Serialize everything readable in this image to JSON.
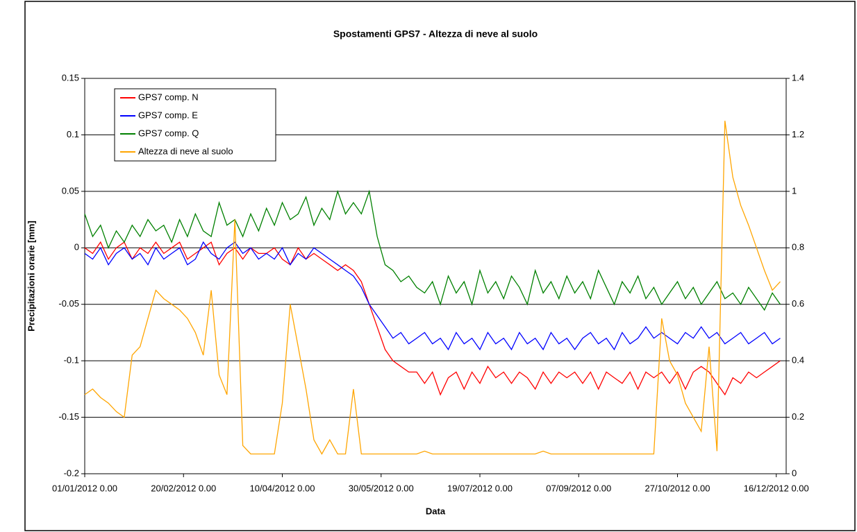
{
  "chart_data": {
    "type": "line",
    "title": "Spostamenti GPS7 - Altezza di neve al suolo",
    "xlabel": "Data",
    "ylabel": "Precipitazioni orarie [mm]",
    "x": [
      0,
      4,
      8,
      12,
      16,
      20,
      24,
      28,
      32,
      36,
      40,
      44,
      48,
      52,
      56,
      60,
      64,
      68,
      72,
      76,
      80,
      84,
      88,
      92,
      96,
      100,
      104,
      108,
      112,
      116,
      120,
      124,
      128,
      132,
      136,
      140,
      144,
      148,
      152,
      156,
      160,
      164,
      168,
      172,
      176,
      180,
      184,
      188,
      192,
      196,
      200,
      204,
      208,
      212,
      216,
      220,
      224,
      228,
      232,
      236,
      240,
      244,
      248,
      252,
      256,
      260,
      264,
      268,
      272,
      276,
      280,
      284,
      288,
      292,
      296,
      300,
      304,
      308,
      312,
      316,
      320,
      324,
      328,
      332,
      336,
      340,
      344,
      348,
      352
    ],
    "xlim": [
      0,
      355
    ],
    "xticks": [
      {
        "value": 0,
        "label": "01/01/2012 0.00"
      },
      {
        "value": 50,
        "label": "20/02/2012 0.00"
      },
      {
        "value": 100,
        "label": "10/04/2012 0.00"
      },
      {
        "value": 150,
        "label": "30/05/2012 0.00"
      },
      {
        "value": 200,
        "label": "19/07/2012 0.00"
      },
      {
        "value": 250,
        "label": "07/09/2012 0.00"
      },
      {
        "value": 300,
        "label": "27/10/2012 0.00"
      },
      {
        "value": 350,
        "label": "16/12/2012 0.00"
      }
    ],
    "ylim": [
      -0.2,
      0.15
    ],
    "yticks": [
      -0.2,
      -0.15,
      -0.1,
      -0.05,
      0,
      0.05,
      0.1,
      0.15
    ],
    "y2lim": [
      0,
      1.4
    ],
    "y2ticks": [
      0,
      0.2,
      0.4,
      0.6,
      0.8,
      1,
      1.2,
      1.4
    ],
    "grid": true,
    "legend": "upper left",
    "series": [
      {
        "name": "GPS7 comp. N",
        "color": "#ff0000",
        "values": [
          0,
          -0.005,
          0.005,
          -0.01,
          0,
          0.005,
          -0.01,
          0,
          -0.005,
          0.005,
          -0.005,
          0,
          0.005,
          -0.01,
          -0.005,
          0,
          0.005,
          -0.015,
          -0.005,
          0,
          -0.01,
          0,
          -0.005,
          -0.005,
          0,
          -0.01,
          -0.015,
          0,
          -0.01,
          -0.005,
          -0.01,
          -0.015,
          -0.02,
          -0.015,
          -0.02,
          -0.03,
          -0.05,
          -0.07,
          -0.09,
          -0.1,
          -0.105,
          -0.11,
          -0.11,
          -0.12,
          -0.11,
          -0.13,
          -0.115,
          -0.11,
          -0.125,
          -0.11,
          -0.12,
          -0.105,
          -0.115,
          -0.11,
          -0.12,
          -0.11,
          -0.115,
          -0.125,
          -0.11,
          -0.12,
          -0.11,
          -0.115,
          -0.11,
          -0.12,
          -0.11,
          -0.125,
          -0.11,
          -0.115,
          -0.12,
          -0.11,
          -0.125,
          -0.11,
          -0.115,
          -0.11,
          -0.12,
          -0.11,
          -0.125,
          -0.11,
          -0.105,
          -0.11,
          -0.12,
          -0.13,
          -0.115,
          -0.12,
          -0.11,
          -0.115,
          -0.11,
          -0.105,
          -0.1
        ]
      },
      {
        "name": "GPS7 comp. E",
        "color": "#0000ff",
        "values": [
          -0.005,
          -0.01,
          0,
          -0.015,
          -0.005,
          0,
          -0.01,
          -0.005,
          -0.015,
          0,
          -0.01,
          -0.005,
          0,
          -0.015,
          -0.01,
          0.005,
          -0.005,
          -0.01,
          0,
          0.005,
          -0.005,
          0,
          -0.01,
          -0.005,
          -0.01,
          0,
          -0.015,
          -0.005,
          -0.01,
          0,
          -0.005,
          -0.01,
          -0.015,
          -0.02,
          -0.025,
          -0.035,
          -0.05,
          -0.06,
          -0.07,
          -0.08,
          -0.075,
          -0.085,
          -0.08,
          -0.075,
          -0.085,
          -0.08,
          -0.09,
          -0.075,
          -0.085,
          -0.08,
          -0.09,
          -0.075,
          -0.085,
          -0.08,
          -0.09,
          -0.075,
          -0.085,
          -0.08,
          -0.09,
          -0.075,
          -0.085,
          -0.08,
          -0.09,
          -0.08,
          -0.075,
          -0.085,
          -0.08,
          -0.09,
          -0.075,
          -0.085,
          -0.08,
          -0.07,
          -0.08,
          -0.075,
          -0.08,
          -0.085,
          -0.075,
          -0.08,
          -0.07,
          -0.08,
          -0.075,
          -0.085,
          -0.08,
          -0.075,
          -0.085,
          -0.08,
          -0.075,
          -0.085,
          -0.08
        ]
      },
      {
        "name": "GPS7 comp. Q",
        "color": "#008000",
        "values": [
          0.03,
          0.01,
          0.02,
          0,
          0.015,
          0.005,
          0.02,
          0.01,
          0.025,
          0.015,
          0.02,
          0.005,
          0.025,
          0.01,
          0.03,
          0.015,
          0.01,
          0.04,
          0.02,
          0.025,
          0.01,
          0.03,
          0.015,
          0.035,
          0.02,
          0.04,
          0.025,
          0.03,
          0.045,
          0.02,
          0.035,
          0.025,
          0.05,
          0.03,
          0.04,
          0.03,
          0.05,
          0.01,
          -0.015,
          -0.02,
          -0.03,
          -0.025,
          -0.035,
          -0.04,
          -0.03,
          -0.05,
          -0.025,
          -0.04,
          -0.03,
          -0.05,
          -0.02,
          -0.04,
          -0.03,
          -0.045,
          -0.025,
          -0.035,
          -0.05,
          -0.02,
          -0.04,
          -0.03,
          -0.045,
          -0.025,
          -0.04,
          -0.03,
          -0.045,
          -0.02,
          -0.035,
          -0.05,
          -0.03,
          -0.04,
          -0.025,
          -0.045,
          -0.035,
          -0.05,
          -0.04,
          -0.03,
          -0.045,
          -0.035,
          -0.05,
          -0.04,
          -0.03,
          -0.045,
          -0.04,
          -0.05,
          -0.035,
          -0.045,
          -0.055,
          -0.04,
          -0.05
        ]
      },
      {
        "name": "Altezza di neve al suolo",
        "color": "#ffa500",
        "axis": "y2",
        "values": [
          0.28,
          0.3,
          0.27,
          0.25,
          0.22,
          0.2,
          0.42,
          0.45,
          0.55,
          0.65,
          0.62,
          0.6,
          0.58,
          0.55,
          0.5,
          0.42,
          0.65,
          0.35,
          0.28,
          0.9,
          0.1,
          0.07,
          0.07,
          0.07,
          0.07,
          0.25,
          0.6,
          0.45,
          0.3,
          0.12,
          0.07,
          0.12,
          0.07,
          0.07,
          0.3,
          0.07,
          0.07,
          0.07,
          0.07,
          0.07,
          0.07,
          0.07,
          0.07,
          0.08,
          0.07,
          0.07,
          0.07,
          0.07,
          0.07,
          0.07,
          0.07,
          0.07,
          0.07,
          0.07,
          0.07,
          0.07,
          0.07,
          0.07,
          0.08,
          0.07,
          0.07,
          0.07,
          0.07,
          0.07,
          0.07,
          0.07,
          0.07,
          0.07,
          0.07,
          0.07,
          0.07,
          0.07,
          0.07,
          0.55,
          0.4,
          0.35,
          0.25,
          0.2,
          0.15,
          0.45,
          0.08,
          1.25,
          1.05,
          0.95,
          0.88,
          0.8,
          0.72,
          0.65,
          0.68
        ]
      }
    ]
  }
}
